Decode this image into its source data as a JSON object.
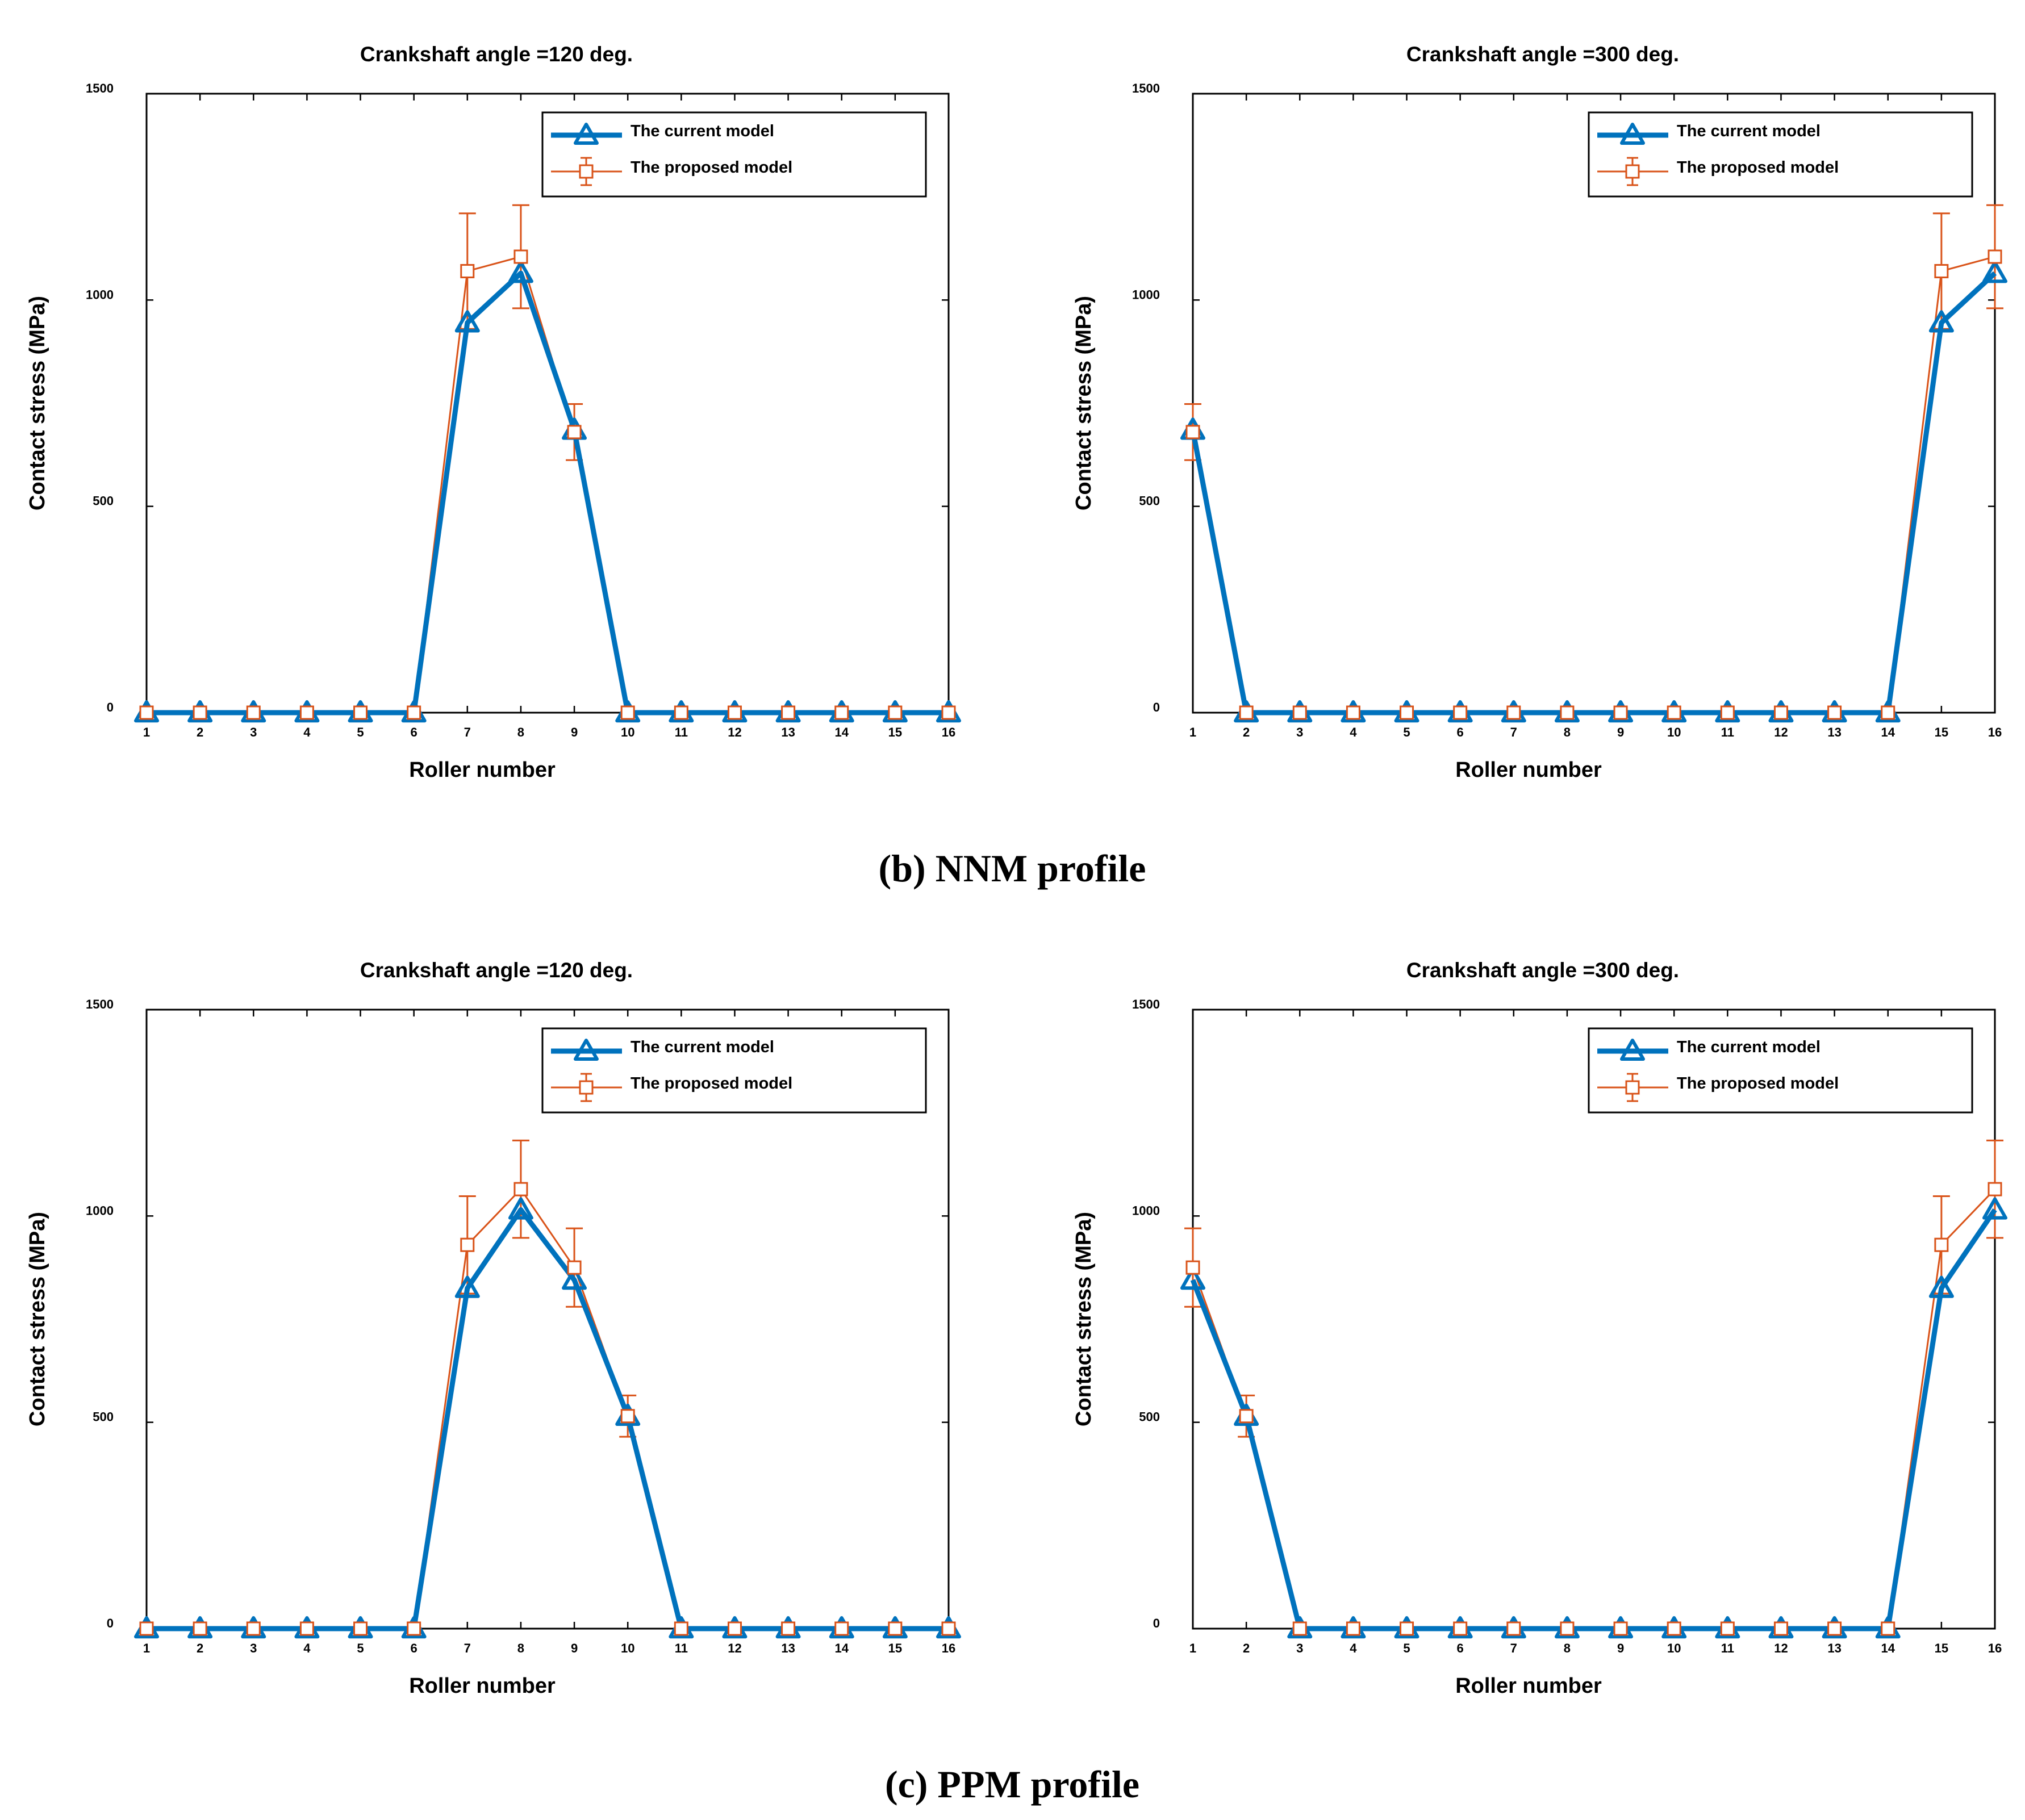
{
  "captions": [
    "(b) NNM profile",
    "(c) PPM profile"
  ],
  "colors": {
    "current": "#0072BD",
    "proposed": "#D95319",
    "axis": "#000000"
  },
  "chart_data": [
    {
      "type": "line",
      "title": "Crankshaft angle =120 deg.",
      "xlabel": "Roller number",
      "ylabel": "Contact stress (MPa)",
      "x": [
        1,
        2,
        3,
        4,
        5,
        6,
        7,
        8,
        9,
        10,
        11,
        12,
        13,
        14,
        15,
        16
      ],
      "ylim": [
        0,
        1500
      ],
      "yticks": [
        0,
        500,
        1000,
        1500
      ],
      "legend_position": "top-right",
      "series": [
        {
          "name": "The current model",
          "values": [
            0,
            0,
            0,
            0,
            0,
            0,
            945,
            1065,
            685,
            0,
            0,
            0,
            0,
            0,
            0,
            0
          ]
        },
        {
          "name": "The proposed model",
          "values": [
            0,
            0,
            0,
            0,
            0,
            0,
            1070,
            1105,
            680,
            0,
            0,
            0,
            0,
            0,
            0,
            0
          ],
          "error": [
            0,
            0,
            0,
            0,
            0,
            0,
            140,
            125,
            68,
            0,
            0,
            0,
            0,
            0,
            0,
            0
          ]
        }
      ]
    },
    {
      "type": "line",
      "title": "Crankshaft angle =300 deg.",
      "xlabel": "Roller number",
      "ylabel": "Contact stress (MPa)",
      "x": [
        1,
        2,
        3,
        4,
        5,
        6,
        7,
        8,
        9,
        10,
        11,
        12,
        13,
        14,
        15,
        16
      ],
      "ylim": [
        0,
        1500
      ],
      "yticks": [
        0,
        500,
        1000,
        1500
      ],
      "legend_position": "top-right",
      "series": [
        {
          "name": "The current model",
          "values": [
            685,
            0,
            0,
            0,
            0,
            0,
            0,
            0,
            0,
            0,
            0,
            0,
            0,
            0,
            945,
            1065
          ]
        },
        {
          "name": "The proposed model",
          "values": [
            680,
            0,
            0,
            0,
            0,
            0,
            0,
            0,
            0,
            0,
            0,
            0,
            0,
            0,
            1070,
            1105
          ],
          "error": [
            68,
            0,
            0,
            0,
            0,
            0,
            0,
            0,
            0,
            0,
            0,
            0,
            0,
            0,
            140,
            125
          ]
        }
      ]
    },
    {
      "type": "line",
      "title": "Crankshaft angle =120 deg.",
      "xlabel": "Roller number",
      "ylabel": "Contact stress (MPa)",
      "x": [
        1,
        2,
        3,
        4,
        5,
        6,
        7,
        8,
        9,
        10,
        11,
        12,
        13,
        14,
        15,
        16
      ],
      "ylim": [
        0,
        1500
      ],
      "yticks": [
        0,
        500,
        1000,
        1500
      ],
      "legend_position": "top-right",
      "series": [
        {
          "name": "The current model",
          "values": [
            0,
            0,
            0,
            0,
            0,
            0,
            825,
            1015,
            845,
            515,
            0,
            0,
            0,
            0,
            0,
            0
          ]
        },
        {
          "name": "The proposed model",
          "values": [
            0,
            0,
            0,
            0,
            0,
            0,
            930,
            1065,
            875,
            515,
            0,
            0,
            0,
            0,
            0,
            0
          ],
          "error": [
            0,
            0,
            0,
            0,
            0,
            0,
            118,
            118,
            95,
            50,
            0,
            0,
            0,
            0,
            0,
            0
          ]
        }
      ]
    },
    {
      "type": "line",
      "title": "Crankshaft angle =300 deg.",
      "xlabel": "Roller number",
      "ylabel": "Contact stress (MPa)",
      "x": [
        1,
        2,
        3,
        4,
        5,
        6,
        7,
        8,
        9,
        10,
        11,
        12,
        13,
        14,
        15,
        16
      ],
      "ylim": [
        0,
        1500
      ],
      "yticks": [
        0,
        500,
        1000,
        1500
      ],
      "legend_position": "top-right",
      "series": [
        {
          "name": "The current model",
          "values": [
            845,
            515,
            0,
            0,
            0,
            0,
            0,
            0,
            0,
            0,
            0,
            0,
            0,
            0,
            825,
            1015
          ]
        },
        {
          "name": "The proposed model",
          "values": [
            875,
            515,
            0,
            0,
            0,
            0,
            0,
            0,
            0,
            0,
            0,
            0,
            0,
            0,
            930,
            1065
          ],
          "error": [
            95,
            50,
            0,
            0,
            0,
            0,
            0,
            0,
            0,
            0,
            0,
            0,
            0,
            0,
            118,
            118
          ]
        }
      ]
    }
  ]
}
